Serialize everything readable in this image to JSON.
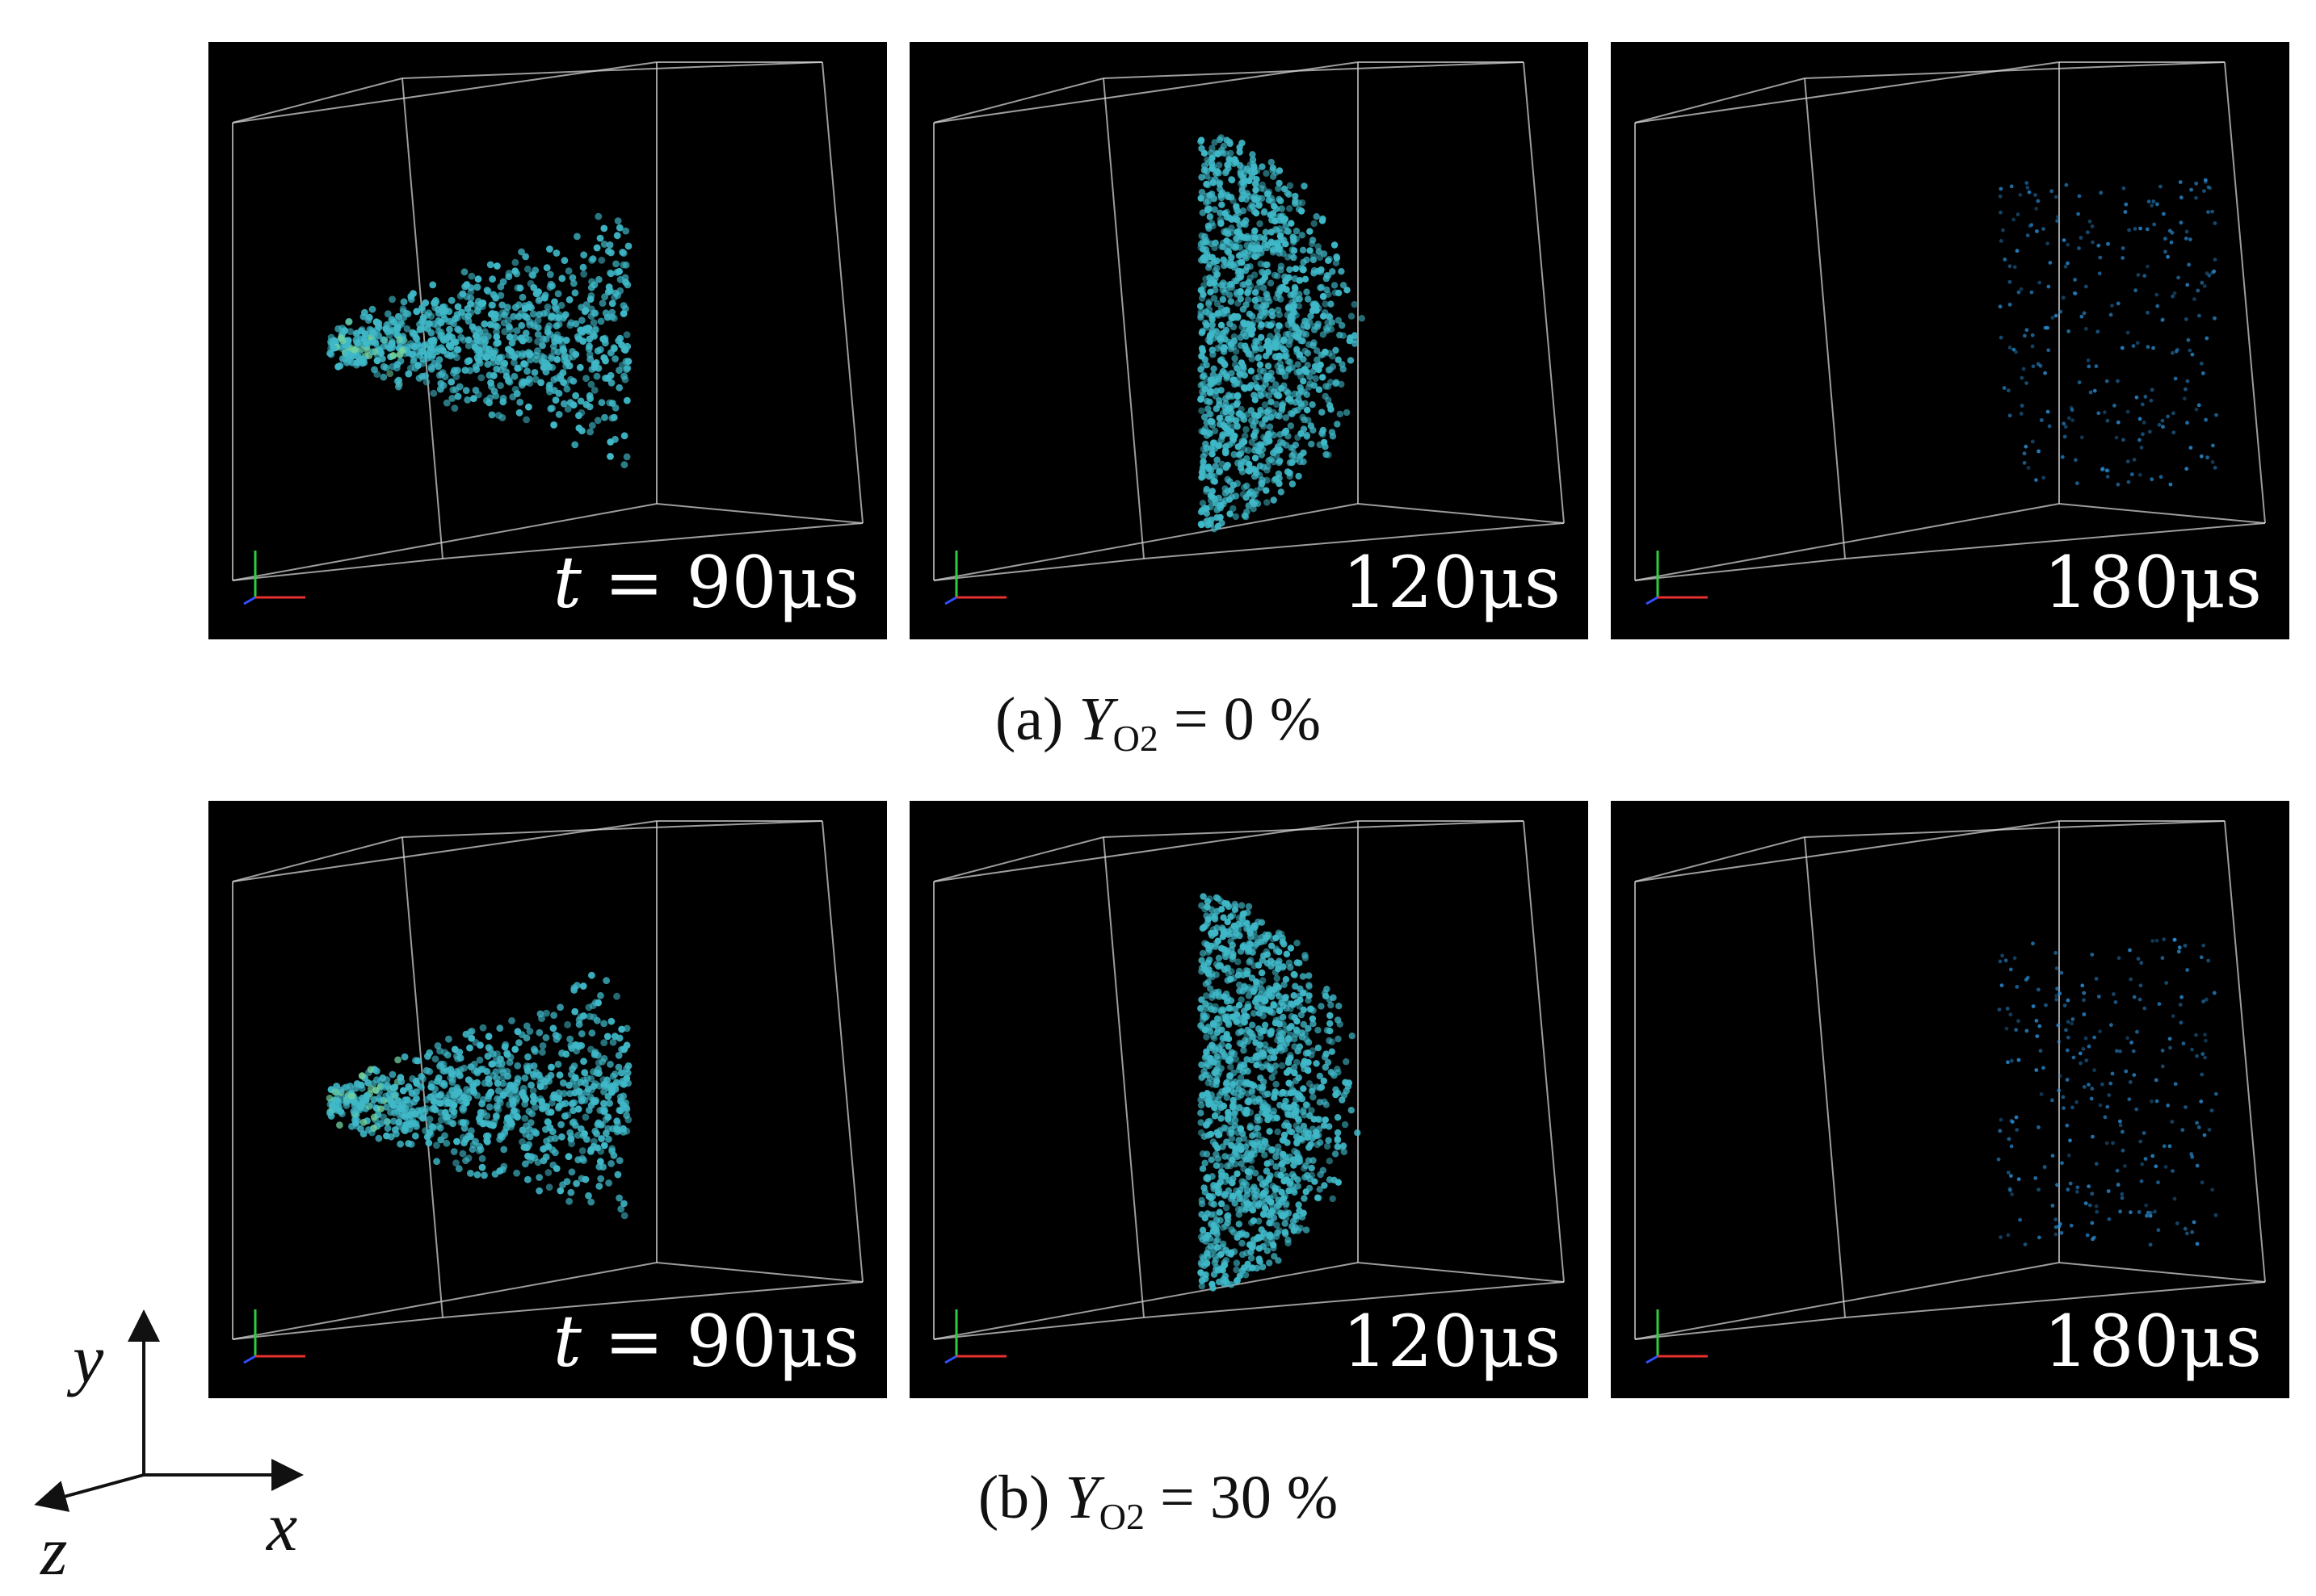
{
  "rows": [
    {
      "caption": {
        "label": "(a)",
        "variable": "Y",
        "subscript": "O2",
        "equals": "= 0 %"
      },
      "panels": [
        {
          "time_prefix_var": "t",
          "time_prefix_op": " = ",
          "time_value": "90μs",
          "spray_stage": "early",
          "density": 1.0
        },
        {
          "time_prefix_var": "",
          "time_prefix_op": "",
          "time_value": "120μs",
          "spray_stage": "middle",
          "density": 1.0
        },
        {
          "time_prefix_var": "",
          "time_prefix_op": "",
          "time_value": "180μs",
          "spray_stage": "late",
          "density": 0.25
        }
      ]
    },
    {
      "caption": {
        "label": "(b)",
        "variable": "Y",
        "subscript": "O2",
        "equals": "= 30 %"
      },
      "panels": [
        {
          "time_prefix_var": "t",
          "time_prefix_op": " = ",
          "time_value": "90μs",
          "spray_stage": "early",
          "density": 1.0
        },
        {
          "time_prefix_var": "",
          "time_prefix_op": "",
          "time_value": "120μs",
          "spray_stage": "middle",
          "density": 1.0
        },
        {
          "time_prefix_var": "",
          "time_prefix_op": "",
          "time_value": "180μs",
          "spray_stage": "late",
          "density": 0.25
        }
      ]
    }
  ],
  "axes": {
    "y": "y",
    "x": "x",
    "z": "z"
  },
  "colors": {
    "background": "#000000",
    "particle_early": "#3fb8c8",
    "particle_late": "#2a8fd8",
    "box": "#d0d0d0"
  }
}
